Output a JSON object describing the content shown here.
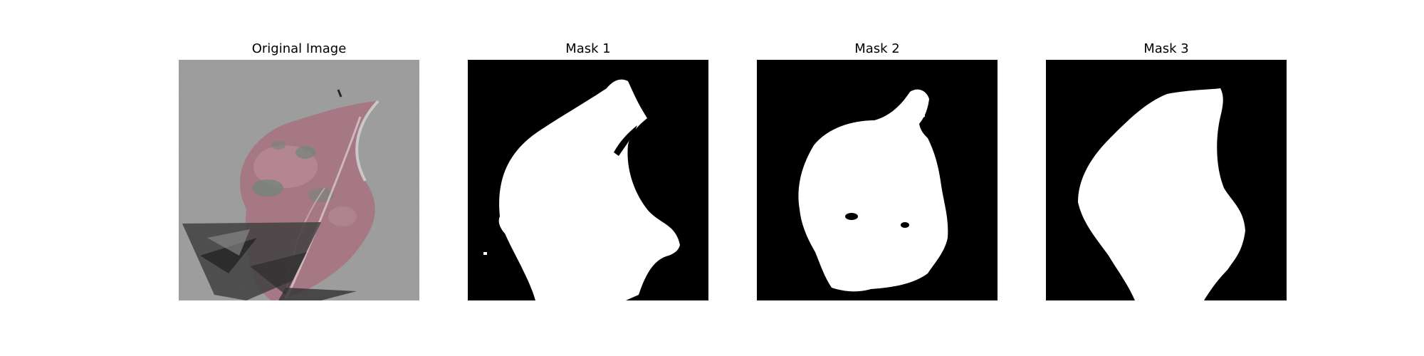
{
  "figure": {
    "panels": [
      {
        "title": "Original Image",
        "kind": "photo"
      },
      {
        "title": "Mask 1",
        "kind": "mask"
      },
      {
        "title": "Mask 2",
        "kind": "mask"
      },
      {
        "title": "Mask 3",
        "kind": "mask"
      }
    ]
  },
  "colors": {
    "background": "#ffffff",
    "mask_foreground": "#ffffff",
    "mask_background": "#000000",
    "photo_background": "#9a9a9a",
    "leaf_tint": "#a87482"
  }
}
